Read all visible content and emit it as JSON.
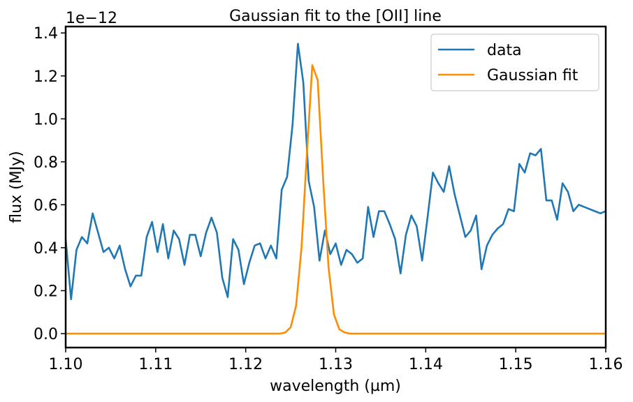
{
  "chart_data": {
    "type": "line",
    "title": "Gaussian fit to the [OII] line",
    "xlabel": "wavelength (µm)",
    "ylabel": "flux (MJy)",
    "offset_label": "1e−12",
    "xlim": [
      1.1,
      1.16
    ],
    "ylim": [
      -0.065,
      1.43
    ],
    "y_scale_factor": "1e-12",
    "grid": false,
    "legend_position": "top-right",
    "x_ticks": [
      "1.10",
      "1.11",
      "1.12",
      "1.13",
      "1.14",
      "1.15",
      "1.16"
    ],
    "x_tick_values": [
      1.1,
      1.11,
      1.12,
      1.13,
      1.14,
      1.15,
      1.16
    ],
    "y_ticks": [
      "0.0",
      "0.2",
      "0.4",
      "0.6",
      "0.8",
      "1.0",
      "1.2",
      "1.4"
    ],
    "y_tick_values": [
      0.0,
      0.2,
      0.4,
      0.6,
      0.8,
      1.0,
      1.2,
      1.4
    ],
    "series": [
      {
        "name": "data",
        "color": "#1f77b4",
        "x": [
          1.1,
          1.1006,
          1.1012,
          1.1018,
          1.1024,
          1.103,
          1.1036,
          1.1042,
          1.1048,
          1.1054,
          1.106,
          1.1066,
          1.1072,
          1.1078,
          1.1084,
          1.109,
          1.1096,
          1.1102,
          1.1108,
          1.1114,
          1.112,
          1.1126,
          1.1132,
          1.1138,
          1.1144,
          1.115,
          1.1156,
          1.1162,
          1.1168,
          1.1174,
          1.118,
          1.1186,
          1.1192,
          1.1198,
          1.1204,
          1.121,
          1.1216,
          1.1222,
          1.1228,
          1.1234,
          1.124,
          1.1246,
          1.1252,
          1.1258,
          1.1264,
          1.127,
          1.1276,
          1.1282,
          1.1288,
          1.1294,
          1.13,
          1.1306,
          1.1312,
          1.1318,
          1.1324,
          1.133,
          1.1336,
          1.1342,
          1.1348,
          1.1354,
          1.136,
          1.1366,
          1.1372,
          1.1378,
          1.1384,
          1.139,
          1.1396,
          1.1402,
          1.1408,
          1.1414,
          1.142,
          1.1426,
          1.1432,
          1.1438,
          1.1444,
          1.145,
          1.1456,
          1.1462,
          1.1468,
          1.1474,
          1.148,
          1.1486,
          1.1492,
          1.1498,
          1.1504,
          1.151,
          1.1516,
          1.1522,
          1.1528,
          1.1534,
          1.154,
          1.1546,
          1.1552,
          1.1558,
          1.1564,
          1.157,
          1.1576,
          1.1582,
          1.1588,
          1.1594,
          1.16
        ],
        "y": [
          0.44,
          0.16,
          0.39,
          0.45,
          0.42,
          0.56,
          0.47,
          0.38,
          0.4,
          0.35,
          0.41,
          0.3,
          0.22,
          0.27,
          0.27,
          0.45,
          0.52,
          0.38,
          0.51,
          0.35,
          0.48,
          0.44,
          0.32,
          0.46,
          0.46,
          0.36,
          0.47,
          0.54,
          0.47,
          0.26,
          0.17,
          0.44,
          0.39,
          0.23,
          0.33,
          0.41,
          0.42,
          0.35,
          0.41,
          0.35,
          0.67,
          0.73,
          0.97,
          1.35,
          1.17,
          0.71,
          0.59,
          0.34,
          0.48,
          0.37,
          0.42,
          0.32,
          0.39,
          0.37,
          0.33,
          0.35,
          0.59,
          0.45,
          0.57,
          0.57,
          0.51,
          0.44,
          0.28,
          0.46,
          0.55,
          0.5,
          0.34,
          0.54,
          0.75,
          0.7,
          0.66,
          0.78,
          0.65,
          0.55,
          0.45,
          0.48,
          0.55,
          0.3,
          0.41,
          0.46,
          0.49,
          0.51,
          0.58,
          0.57,
          0.79,
          0.75,
          0.84,
          0.83,
          0.86,
          0.62,
          0.62,
          0.53,
          0.7,
          0.66,
          0.57,
          0.6,
          0.59,
          0.58,
          0.57,
          0.56,
          0.57
        ]
      },
      {
        "name": "Gaussian fit",
        "color": "#ff8c00",
        "x": [
          1.1,
          1.1238,
          1.1244,
          1.125,
          1.1256,
          1.1262,
          1.1268,
          1.1274,
          1.128,
          1.1286,
          1.1292,
          1.1298,
          1.1304,
          1.131,
          1.1316,
          1.1322,
          1.16
        ],
        "y": [
          0.0,
          0.0,
          0.005,
          0.03,
          0.13,
          0.4,
          0.84,
          1.25,
          1.18,
          0.72,
          0.31,
          0.09,
          0.02,
          0.005,
          0.0,
          0.0,
          0.0
        ]
      }
    ]
  }
}
